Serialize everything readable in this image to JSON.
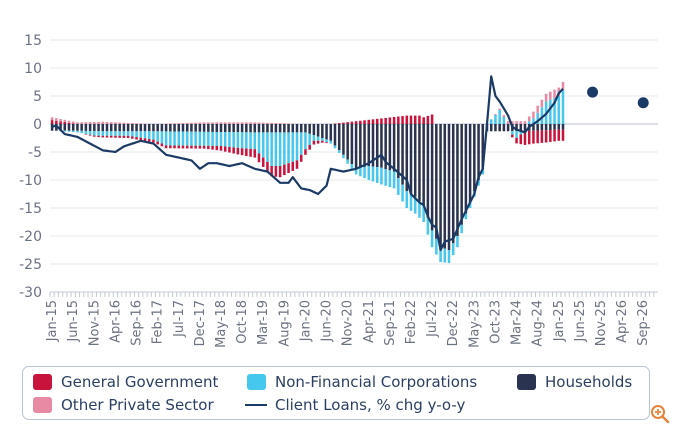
{
  "chart_data": {
    "type": "stacked-bar-with-line",
    "title": "",
    "xlabel": "",
    "ylabel": "",
    "ylim": [
      -30,
      15
    ],
    "y_ticks": [
      "15",
      "10",
      "5",
      "0",
      "-5",
      "-10",
      "-15",
      "-20",
      "-25",
      "-30"
    ],
    "x_ticks": [
      "Jan-15",
      "Jun-15",
      "Nov-15",
      "Apr-16",
      "Sep-16",
      "Feb-17",
      "Jul-17",
      "Dec-17",
      "May-18",
      "Oct-18",
      "Mar-19",
      "Aug-19",
      "Jan-20",
      "Jun-20",
      "Nov-20",
      "Apr-21",
      "Sep-21",
      "Feb-22",
      "Jul-22",
      "Dec-22",
      "May-23",
      "Oct-23",
      "Mar-24",
      "Aug-24",
      "Jan-25",
      "Jun-25",
      "Nov-25",
      "Apr-26",
      "Sep-26"
    ],
    "period": {
      "start": "Jan-15",
      "end": "Dec-26",
      "frequency": "monthly"
    },
    "series_order": [
      "Households",
      "Non-Financial Corporations",
      "General Government",
      "Other Private Sector"
    ],
    "bar_series": [
      {
        "name": "Households",
        "color": "#2a3450",
        "anchors": [
          [
            0,
            -1.2
          ],
          [
            6,
            -1.2
          ],
          [
            12,
            -1.3
          ],
          [
            24,
            -1.3
          ],
          [
            36,
            -1.4
          ],
          [
            48,
            -1.5
          ],
          [
            60,
            -1.5
          ],
          [
            66,
            -3
          ],
          [
            69,
            -5.5
          ],
          [
            72,
            -8
          ],
          [
            75,
            -7.5
          ],
          [
            78,
            -7.8
          ],
          [
            81,
            -8.5
          ],
          [
            84,
            -12
          ],
          [
            86,
            -13
          ],
          [
            88,
            -14.5
          ],
          [
            90,
            -19
          ],
          [
            92,
            -22
          ],
          [
            94,
            -22.5
          ],
          [
            96,
            -20
          ],
          [
            98,
            -16
          ],
          [
            100,
            -12
          ],
          [
            102,
            -8
          ],
          [
            103,
            -1.3
          ],
          [
            104,
            -1.3
          ],
          [
            106,
            -1.3
          ],
          [
            108,
            -1.3
          ],
          [
            114,
            -1.2
          ],
          [
            120,
            -1.0
          ]
        ]
      },
      {
        "name": "Non-Financial Corporations",
        "color": "#46c8ee",
        "anchors": [
          [
            0,
            0
          ],
          [
            6,
            -0.3
          ],
          [
            10,
            -0.8
          ],
          [
            12,
            -0.8
          ],
          [
            18,
            -0.8
          ],
          [
            24,
            -1.5
          ],
          [
            27,
            -2.5
          ],
          [
            30,
            -2.5
          ],
          [
            33,
            -2.5
          ],
          [
            36,
            -2.5
          ],
          [
            40,
            -2.5
          ],
          [
            44,
            -2.8
          ],
          [
            48,
            -3
          ],
          [
            50,
            -4.5
          ],
          [
            52,
            -6
          ],
          [
            54,
            -6
          ],
          [
            56,
            -5.5
          ],
          [
            58,
            -5
          ],
          [
            60,
            -3
          ],
          [
            62,
            -1
          ],
          [
            64,
            -0.5
          ],
          [
            68,
            -0.5
          ],
          [
            72,
            -1
          ],
          [
            75,
            -2.5
          ],
          [
            78,
            -3
          ],
          [
            81,
            -3
          ],
          [
            84,
            -3
          ],
          [
            87,
            -3
          ],
          [
            90,
            -3
          ],
          [
            93,
            -2.5
          ],
          [
            96,
            -2
          ],
          [
            98,
            -1
          ],
          [
            100,
            -1
          ],
          [
            102,
            -1
          ],
          [
            103,
            0
          ],
          [
            106,
            2.5
          ],
          [
            108,
            0
          ],
          [
            110,
            -1.2
          ],
          [
            112,
            0
          ],
          [
            114,
            1
          ],
          [
            117,
            4
          ],
          [
            120,
            5
          ],
          [
            121,
            6
          ]
        ]
      },
      {
        "name": "General Government",
        "color": "#c8143c",
        "anchors": [
          [
            0,
            0.7
          ],
          [
            6,
            0
          ],
          [
            12,
            -0.3
          ],
          [
            24,
            -0.5
          ],
          [
            36,
            -0.5
          ],
          [
            42,
            -1
          ],
          [
            48,
            -1.5
          ],
          [
            54,
            -2
          ],
          [
            58,
            -1.5
          ],
          [
            60,
            -1
          ],
          [
            66,
            0
          ],
          [
            84,
            1.5
          ],
          [
            87,
            1.5
          ],
          [
            88,
            1.2
          ],
          [
            90,
            1.7
          ],
          [
            91,
            0
          ],
          [
            102,
            0
          ],
          [
            103,
            0
          ],
          [
            108,
            0
          ],
          [
            110,
            -1
          ],
          [
            112,
            -2.5
          ],
          [
            114,
            -2.3
          ],
          [
            117,
            -2.2
          ],
          [
            120,
            -2.0
          ],
          [
            121,
            -2.0
          ]
        ]
      },
      {
        "name": "Other Private Sector",
        "color": "#e88aa4",
        "anchors": [
          [
            0,
            0.5
          ],
          [
            6,
            0.3
          ],
          [
            12,
            0.4
          ],
          [
            24,
            0
          ],
          [
            36,
            0.3
          ],
          [
            48,
            0.3
          ],
          [
            60,
            0
          ],
          [
            72,
            0
          ],
          [
            84,
            0
          ],
          [
            96,
            0
          ],
          [
            102,
            0
          ],
          [
            104,
            0
          ],
          [
            108,
            0.5
          ],
          [
            112,
            0.5
          ],
          [
            114,
            1.2
          ],
          [
            117,
            1.4
          ],
          [
            120,
            1.5
          ],
          [
            121,
            1.5
          ]
        ]
      }
    ],
    "line_series": {
      "name": "Client Loans, % chg y-o-y",
      "color": "#1b3a66",
      "anchors": [
        [
          0,
          -0.5
        ],
        [
          1,
          -0.3
        ],
        [
          3,
          -1.8
        ],
        [
          6,
          -2.3
        ],
        [
          9,
          -3.5
        ],
        [
          12,
          -4.7
        ],
        [
          15,
          -5
        ],
        [
          17,
          -4.0
        ],
        [
          19,
          -3.5
        ],
        [
          21,
          -3.0
        ],
        [
          24,
          -3.5
        ],
        [
          27,
          -5.5
        ],
        [
          30,
          -6.0
        ],
        [
          33,
          -6.5
        ],
        [
          35,
          -8.0
        ],
        [
          37,
          -7.0
        ],
        [
          39,
          -7.0
        ],
        [
          42,
          -7.5
        ],
        [
          45,
          -7.0
        ],
        [
          48,
          -8.0
        ],
        [
          51,
          -8.5
        ],
        [
          54,
          -10.5
        ],
        [
          56,
          -10.5
        ],
        [
          57,
          -9.5
        ],
        [
          59,
          -11.5
        ],
        [
          61,
          -11.8
        ],
        [
          63,
          -12.5
        ],
        [
          65,
          -11.0
        ],
        [
          66,
          -8.0
        ],
        [
          69,
          -8.5
        ],
        [
          72,
          -8.0
        ],
        [
          75,
          -7.0
        ],
        [
          78,
          -5.5
        ],
        [
          79,
          -6.8
        ],
        [
          81,
          -8.0
        ],
        [
          84,
          -10.0
        ],
        [
          85,
          -12.5
        ],
        [
          87,
          -14.0
        ],
        [
          88,
          -14.5
        ],
        [
          89,
          -16.5
        ],
        [
          90,
          -18.0
        ],
        [
          91,
          -18.5
        ],
        [
          92,
          -22.5
        ],
        [
          93,
          -21.0
        ],
        [
          95,
          -20.5
        ],
        [
          97,
          -17.0
        ],
        [
          99,
          -14.0
        ],
        [
          100,
          -12.5
        ],
        [
          101,
          -9.5
        ],
        [
          102,
          -8.0
        ],
        [
          103,
          0.0
        ],
        [
          104,
          8.5
        ],
        [
          105,
          5.0
        ],
        [
          106,
          4.0
        ],
        [
          108,
          1.5
        ],
        [
          109,
          -0.5
        ],
        [
          110,
          -1.0
        ],
        [
          112,
          -1.5
        ],
        [
          113,
          -0.5
        ],
        [
          115,
          0.5
        ],
        [
          117,
          1.8
        ],
        [
          119,
          3.8
        ],
        [
          120,
          5.5
        ],
        [
          121,
          6.3
        ]
      ]
    },
    "forecast_points": [
      [
        128,
        5.7
      ],
      [
        140,
        3.8
      ]
    ],
    "forecast_color": "#1b3a66",
    "legend": {
      "position": "bottom",
      "items": [
        {
          "label": "General Government",
          "color": "#c8143c",
          "kind": "swatch"
        },
        {
          "label": "Non-Financial Corporations",
          "color": "#46c8ee",
          "kind": "swatch"
        },
        {
          "label": "Households",
          "color": "#2a3450",
          "kind": "swatch"
        },
        {
          "label": "Other Private Sector",
          "color": "#e88aa4",
          "kind": "swatch"
        },
        {
          "label": "Client Loans, % chg y-o-y",
          "color": "#1b3a66",
          "kind": "line"
        }
      ]
    }
  },
  "colors": {
    "axis_text": "#6b7280",
    "grid": "#e4e8ee",
    "axis": "#c3cbd6",
    "legend_text": "#2b3f63",
    "zoom_icon": "#e8833a"
  },
  "icons": {
    "zoom": "zoom-in-icon"
  }
}
